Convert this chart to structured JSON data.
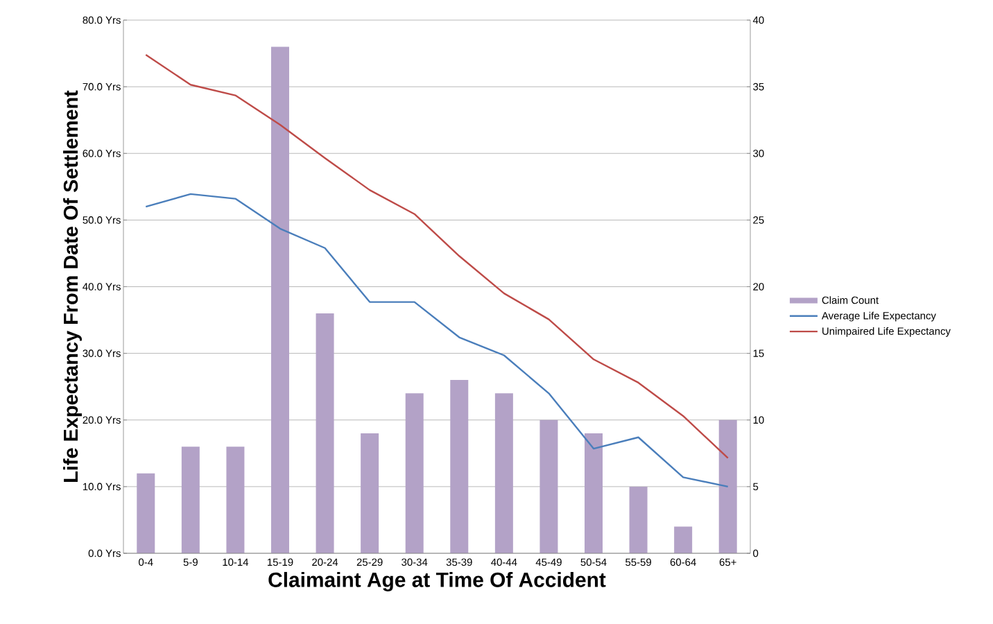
{
  "chart_data": {
    "type": "bar",
    "xlabel": "Claimaint Age at Time Of Accident",
    "ylabel": "Life Expectancy From Date Of Settlement",
    "categories": [
      "0-4",
      "5-9",
      "10-14",
      "15-19",
      "20-24",
      "25-29",
      "30-34",
      "35-39",
      "40-44",
      "45-49",
      "50-54",
      "55-59",
      "60-64",
      "65+"
    ],
    "series": [
      {
        "name": "Claim Count",
        "axis": "y2",
        "color": "#b3a2c7",
        "values": [
          6,
          8,
          8,
          38,
          18,
          9,
          12,
          13,
          12,
          10,
          9,
          5,
          2,
          10
        ]
      },
      {
        "name": "Average Life Expectancy",
        "type": "line",
        "color": "#4a7ebb",
        "values": [
          52.0,
          53.9,
          53.2,
          48.7,
          45.8,
          37.7,
          37.7,
          32.4,
          29.7,
          24.0,
          15.7,
          17.4,
          11.4,
          10.0
        ]
      },
      {
        "name": "Unimpaired Life Expectancy",
        "type": "line",
        "color": "#be4b48",
        "values": [
          74.8,
          70.3,
          68.7,
          64.3,
          59.3,
          54.5,
          50.9,
          44.6,
          39.0,
          35.1,
          29.1,
          25.6,
          20.6,
          14.3
        ]
      }
    ],
    "ylim": [
      0,
      80
    ],
    "yticks": [
      {
        "value": 0,
        "label": "0.0 Yrs"
      },
      {
        "value": 10,
        "label": "10.0 Yrs"
      },
      {
        "value": 20,
        "label": "20.0 Yrs"
      },
      {
        "value": 30,
        "label": "30.0 Yrs"
      },
      {
        "value": 40,
        "label": "40.0 Yrs"
      },
      {
        "value": 50,
        "label": "50.0 Yrs"
      },
      {
        "value": 60,
        "label": "60.0 Yrs"
      },
      {
        "value": 70,
        "label": "70.0 Yrs"
      },
      {
        "value": 80,
        "label": "80.0 Yrs"
      }
    ],
    "y2lim": [
      0,
      40
    ],
    "y2ticks": [
      0,
      5,
      10,
      15,
      20,
      25,
      30,
      35,
      40
    ],
    "grid": "y",
    "legend": "right"
  }
}
